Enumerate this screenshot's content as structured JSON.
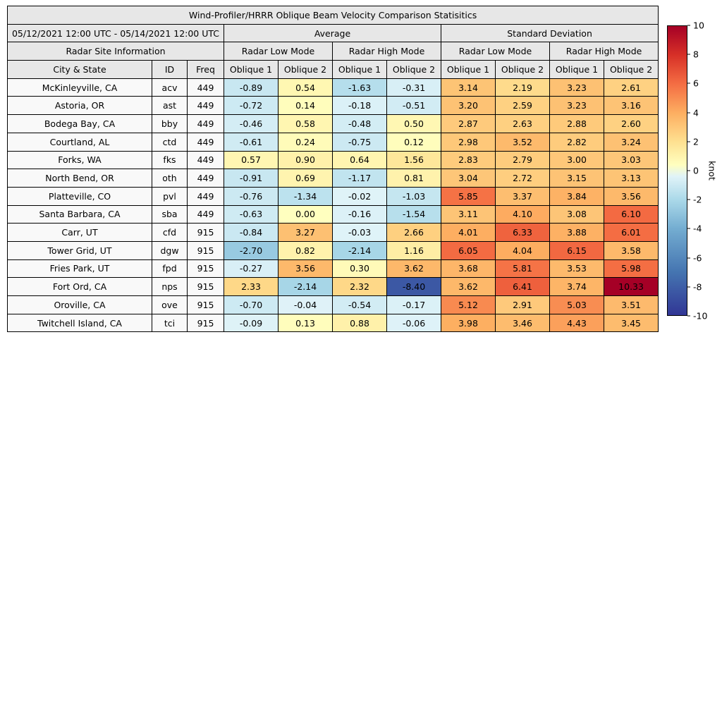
{
  "title": "Wind-Profiler/HRRR Oblique Beam Velocity Comparison Statisitics",
  "date_range": "05/12/2021 12:00 UTC - 05/14/2021 12:00 UTC",
  "headers": {
    "average": "Average",
    "std_dev": "Standard Deviation",
    "site_info": "Radar Site Information",
    "low_mode": "Radar Low Mode",
    "high_mode": "Radar High Mode",
    "city": "City & State",
    "id": "ID",
    "freq": "Freq",
    "oblique1": "Oblique 1",
    "oblique2": "Oblique 2"
  },
  "colorbar": {
    "label": "knot",
    "min": -10,
    "max": 10,
    "ticks": [
      10,
      8,
      6,
      4,
      2,
      0,
      -2,
      -4,
      -6,
      -8,
      -10
    ],
    "gradient_stops": [
      {
        "color": "#a50026",
        "pct": 0
      },
      {
        "color": "#d73027",
        "pct": 10
      },
      {
        "color": "#f46d43",
        "pct": 20
      },
      {
        "color": "#fdae61",
        "pct": 30
      },
      {
        "color": "#fee090",
        "pct": 40
      },
      {
        "color": "#ffffbf",
        "pct": 48
      },
      {
        "color": "#e0f3f8",
        "pct": 52
      },
      {
        "color": "#abd9e9",
        "pct": 60
      },
      {
        "color": "#74add1",
        "pct": 70
      },
      {
        "color": "#4575b1",
        "pct": 85
      },
      {
        "color": "#313695",
        "pct": 100
      }
    ],
    "cell_colormap": {
      "negative": [
        [
          0,
          "#e0f3f8"
        ],
        [
          2,
          "#abd9e9"
        ],
        [
          4,
          "#74add1"
        ],
        [
          7,
          "#4575b1"
        ],
        [
          10,
          "#313695"
        ]
      ],
      "positive": [
        [
          0,
          "#ffffbf"
        ],
        [
          2,
          "#fee090"
        ],
        [
          4,
          "#fdae61"
        ],
        [
          6,
          "#f46d43"
        ],
        [
          8,
          "#d73027"
        ],
        [
          10,
          "#a50026"
        ]
      ]
    }
  },
  "chart_data": {
    "type": "heatmap",
    "title": "Wind-Profiler/HRRR Oblique Beam Velocity Comparison Statisitics",
    "colorbar_label": "knot",
    "value_range": [
      -10,
      10
    ],
    "columns": [
      "Average / Radar Low Mode / Oblique 1",
      "Average / Radar Low Mode / Oblique 2",
      "Average / Radar High Mode / Oblique 1",
      "Average / Radar High Mode / Oblique 2",
      "Standard Deviation / Radar Low Mode / Oblique 1",
      "Standard Deviation / Radar Low Mode / Oblique 2",
      "Standard Deviation / Radar High Mode / Oblique 1",
      "Standard Deviation / Radar High Mode / Oblique 2"
    ],
    "rows": [
      {
        "city": "McKinleyville, CA",
        "id": "acv",
        "freq": "449",
        "values": [
          -0.89,
          0.54,
          -1.63,
          -0.31,
          3.14,
          2.19,
          3.23,
          2.61
        ]
      },
      {
        "city": "Astoria, OR",
        "id": "ast",
        "freq": "449",
        "values": [
          -0.72,
          0.14,
          -0.18,
          -0.51,
          3.2,
          2.59,
          3.23,
          3.16
        ]
      },
      {
        "city": "Bodega Bay, CA",
        "id": "bby",
        "freq": "449",
        "values": [
          -0.46,
          0.58,
          -0.48,
          0.5,
          2.87,
          2.63,
          2.88,
          2.6
        ]
      },
      {
        "city": "Courtland, AL",
        "id": "ctd",
        "freq": "449",
        "values": [
          -0.61,
          0.24,
          -0.75,
          0.12,
          2.98,
          3.52,
          2.82,
          3.24
        ]
      },
      {
        "city": "Forks, WA",
        "id": "fks",
        "freq": "449",
        "values": [
          0.57,
          0.9,
          0.64,
          1.56,
          2.83,
          2.79,
          3.0,
          3.03
        ]
      },
      {
        "city": "North Bend, OR",
        "id": "oth",
        "freq": "449",
        "values": [
          -0.91,
          0.69,
          -1.17,
          0.81,
          3.04,
          2.72,
          3.15,
          3.13
        ]
      },
      {
        "city": "Platteville, CO",
        "id": "pvl",
        "freq": "449",
        "values": [
          -0.76,
          -1.34,
          -0.02,
          -1.03,
          5.85,
          3.37,
          3.84,
          3.56
        ]
      },
      {
        "city": "Santa Barbara, CA",
        "id": "sba",
        "freq": "449",
        "values": [
          -0.63,
          0.0,
          -0.16,
          -1.54,
          3.11,
          4.1,
          3.08,
          6.1
        ]
      },
      {
        "city": "Carr, UT",
        "id": "cfd",
        "freq": "915",
        "values": [
          -0.84,
          3.27,
          -0.03,
          2.66,
          4.01,
          6.33,
          3.88,
          6.01
        ]
      },
      {
        "city": "Tower Grid, UT",
        "id": "dgw",
        "freq": "915",
        "values": [
          -2.7,
          0.82,
          -2.14,
          1.16,
          6.05,
          4.04,
          6.15,
          3.58
        ]
      },
      {
        "city": "Fries Park, UT",
        "id": "fpd",
        "freq": "915",
        "values": [
          -0.27,
          3.56,
          0.3,
          3.62,
          3.68,
          5.81,
          3.53,
          5.98
        ]
      },
      {
        "city": "Fort Ord, CA",
        "id": "nps",
        "freq": "915",
        "values": [
          2.33,
          -2.14,
          2.32,
          -8.4,
          3.62,
          6.41,
          3.74,
          10.33
        ]
      },
      {
        "city": "Oroville, CA",
        "id": "ove",
        "freq": "915",
        "values": [
          -0.7,
          -0.04,
          -0.54,
          -0.17,
          5.12,
          2.91,
          5.03,
          3.51
        ]
      },
      {
        "city": "Twitchell Island, CA",
        "id": "tci",
        "freq": "915",
        "values": [
          -0.09,
          0.13,
          0.88,
          -0.06,
          3.98,
          3.46,
          4.43,
          3.45
        ]
      }
    ]
  }
}
